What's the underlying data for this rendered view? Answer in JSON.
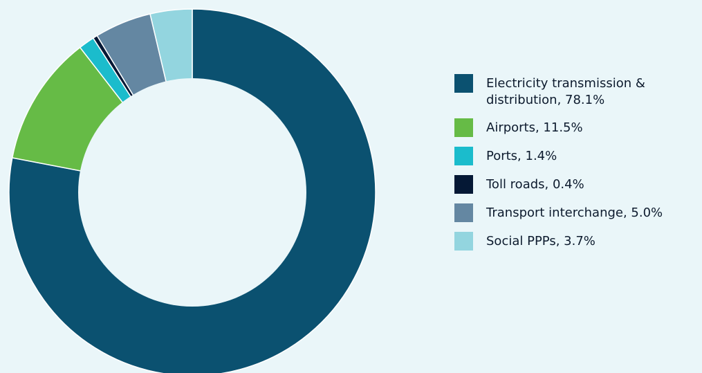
{
  "chart_data": {
    "type": "pie",
    "variant": "donut",
    "title": "",
    "categories": [
      "Electricity transmission & distribution",
      "Airports",
      "Ports",
      "Toll roads",
      "Transport interchange",
      "Social PPPs"
    ],
    "values": [
      78.1,
      11.5,
      1.4,
      0.4,
      5.0,
      3.7
    ],
    "unit": "%",
    "colors": [
      "#0b5170",
      "#66bb46",
      "#1bbccc",
      "#051835",
      "#6487a2",
      "#93d5df"
    ],
    "start_angle": "12 o'clock",
    "direction": "clockwise",
    "legend_position": "right",
    "legend": [
      {
        "label": "Electricity transmission & distribution, 78.1%",
        "color": "#0b5170"
      },
      {
        "label": "Airports, 11.5%",
        "color": "#66bb46"
      },
      {
        "label": "Ports, 1.4%",
        "color": "#1bbccc"
      },
      {
        "label": "Toll roads, 0.4%",
        "color": "#051835"
      },
      {
        "label": "Transport interchange, 5.0%",
        "color": "#6487a2"
      },
      {
        "label": "Social PPPs, 3.7%",
        "color": "#93d5df"
      }
    ]
  }
}
